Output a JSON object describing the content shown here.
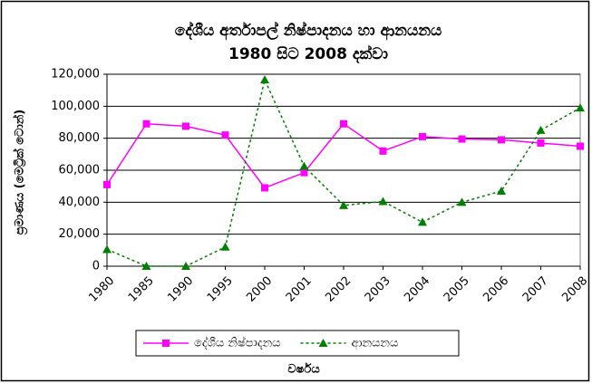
{
  "chart_data": {
    "type": "line",
    "title": "දේශීය  අර්තාපල් නිෂ්පාදනය හා ආනයනය",
    "subtitle": "1980 සිට 2008 දක්වා",
    "x_label": "වර්ෂය",
    "y_label": "ප්‍රමාණය (මෙට්‍රික් ටොන්)",
    "categories": [
      "1980",
      "1985",
      "1990",
      "1995",
      "2000",
      "2001",
      "2002",
      "2003",
      "2004",
      "2005",
      "2006",
      "2007",
      "2008"
    ],
    "series": [
      {
        "name": "දේශීය නිෂ්පාදනය",
        "color": "#ff00ff",
        "marker": "square",
        "dashed": false,
        "values": [
          51000,
          89000,
          87500,
          82000,
          49000,
          58500,
          89000,
          72000,
          81000,
          79500,
          79000,
          77000,
          75000
        ]
      },
      {
        "name": "ආනයනය",
        "color": "#008000",
        "marker": "triangle",
        "dashed": true,
        "values": [
          10500,
          0,
          0,
          12000,
          116500,
          62500,
          38000,
          40500,
          27500,
          40000,
          47000,
          85000,
          99000
        ]
      }
    ],
    "ylim": [
      0,
      120000
    ],
    "yticks": [
      0,
      {
        "value": 20000,
        "label": "20,000"
      },
      {
        "value": 40000,
        "label": "40,000"
      },
      {
        "value": 60000,
        "label": "60,000"
      },
      {
        "value": 80000,
        "label": "80,000"
      },
      {
        "value": 100000,
        "label": "100,000"
      },
      {
        "value": 120000,
        "label": "120,000"
      }
    ],
    "grid": true,
    "legend": "bottom"
  }
}
